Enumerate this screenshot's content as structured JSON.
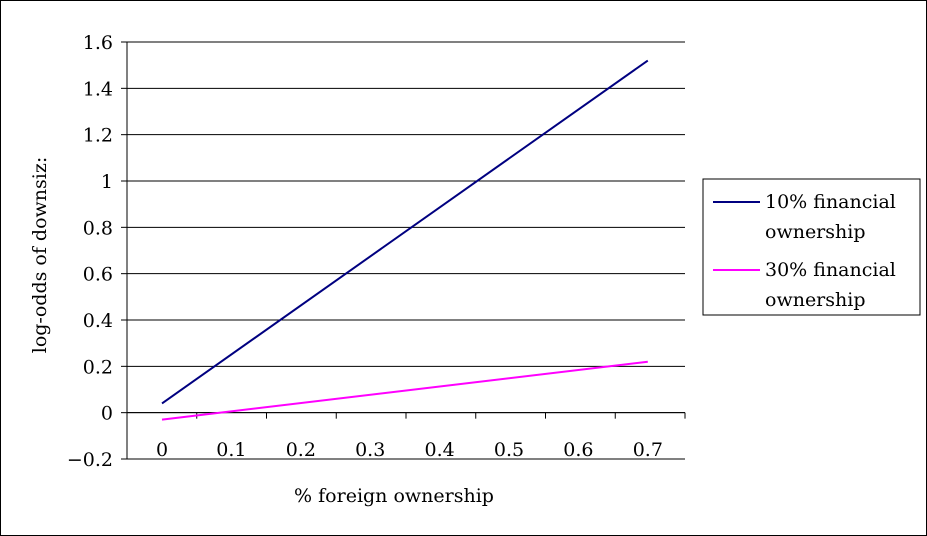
{
  "chart_data": {
    "type": "line",
    "title": "",
    "xlabel": "% foreign ownership",
    "ylabel": "log-odds of downsiz:",
    "x": [
      0,
      0.7
    ],
    "x_ticks": [
      "0",
      "0.1",
      "0.2",
      "0.3",
      "0.4",
      "0.5",
      "0.6",
      "0.7"
    ],
    "ylim": [
      -0.2,
      1.6
    ],
    "y_ticks": [
      "-0.2",
      "0",
      "0.2",
      "0.4",
      "0.6",
      "0.8",
      "1",
      "1.2",
      "1.4",
      "1.6"
    ],
    "grid": true,
    "legend_position": "right",
    "series": [
      {
        "name": "10% financial ownership",
        "legend_lines": [
          "10% financial",
          "ownership"
        ],
        "color": "#000080",
        "values": [
          0.04,
          1.52
        ]
      },
      {
        "name": "30% financial ownership",
        "legend_lines": [
          "30% financial",
          "ownership"
        ],
        "color": "#ff00ff",
        "values": [
          -0.03,
          0.22
        ]
      }
    ]
  }
}
